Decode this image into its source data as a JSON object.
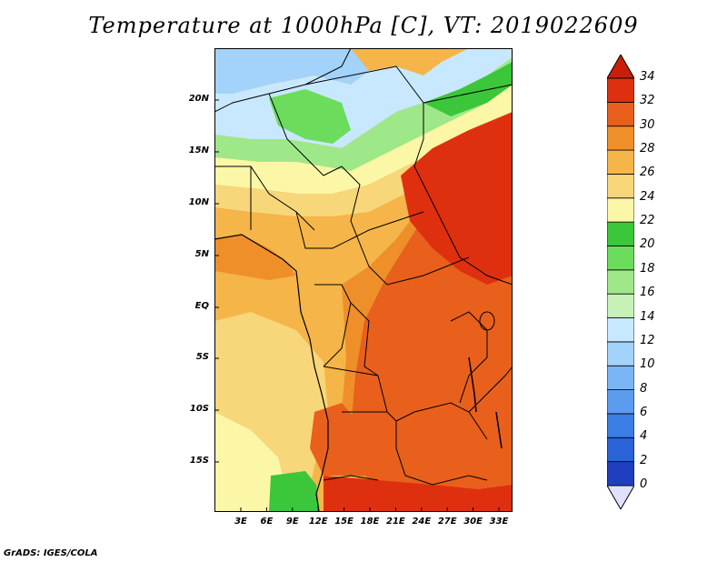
{
  "title": "Temperature at 1000hPa [C], VT: 2019022609",
  "credit": "GrADS: IGES/COLA",
  "lat_labels": [
    "20N",
    "15N",
    "10N",
    "5N",
    "EQ",
    "5S",
    "10S",
    "15S"
  ],
  "lon_labels": [
    "3E",
    "6E",
    "9E",
    "12E",
    "15E",
    "18E",
    "21E",
    "24E",
    "27E",
    "30E",
    "33E"
  ],
  "colorbar": {
    "levels": [
      "0",
      "2",
      "4",
      "6",
      "8",
      "10",
      "12",
      "14",
      "16",
      "18",
      "20",
      "22",
      "24",
      "26",
      "28",
      "30",
      "32",
      "34"
    ],
    "colors": [
      "#1a0a80",
      "#1f3fbf",
      "#2a62d8",
      "#3a7ee6",
      "#5b9cef",
      "#7ab6f5",
      "#a3d2fa",
      "#c8e8ff",
      "#c6f2b8",
      "#9ee889",
      "#6cdc5c",
      "#3cc63a",
      "#fbf7a6",
      "#f8d67a",
      "#f5b548",
      "#ef8f2a",
      "#e8601c",
      "#de300f",
      "#c81e0a"
    ],
    "under_color": "#e0e0ff",
    "over_color": "#c81e0a"
  },
  "map_colors": {
    "c14": "#a3d2fa",
    "c16": "#c8e8ff",
    "c18": "#9ee889",
    "c20": "#6cdc5c",
    "c22": "#3cc63a",
    "c24": "#fbf7a6",
    "c26": "#f8d67a",
    "c28": "#f5b548",
    "c30": "#ef8f2a",
    "c32": "#e8601c",
    "c34": "#de300f"
  }
}
